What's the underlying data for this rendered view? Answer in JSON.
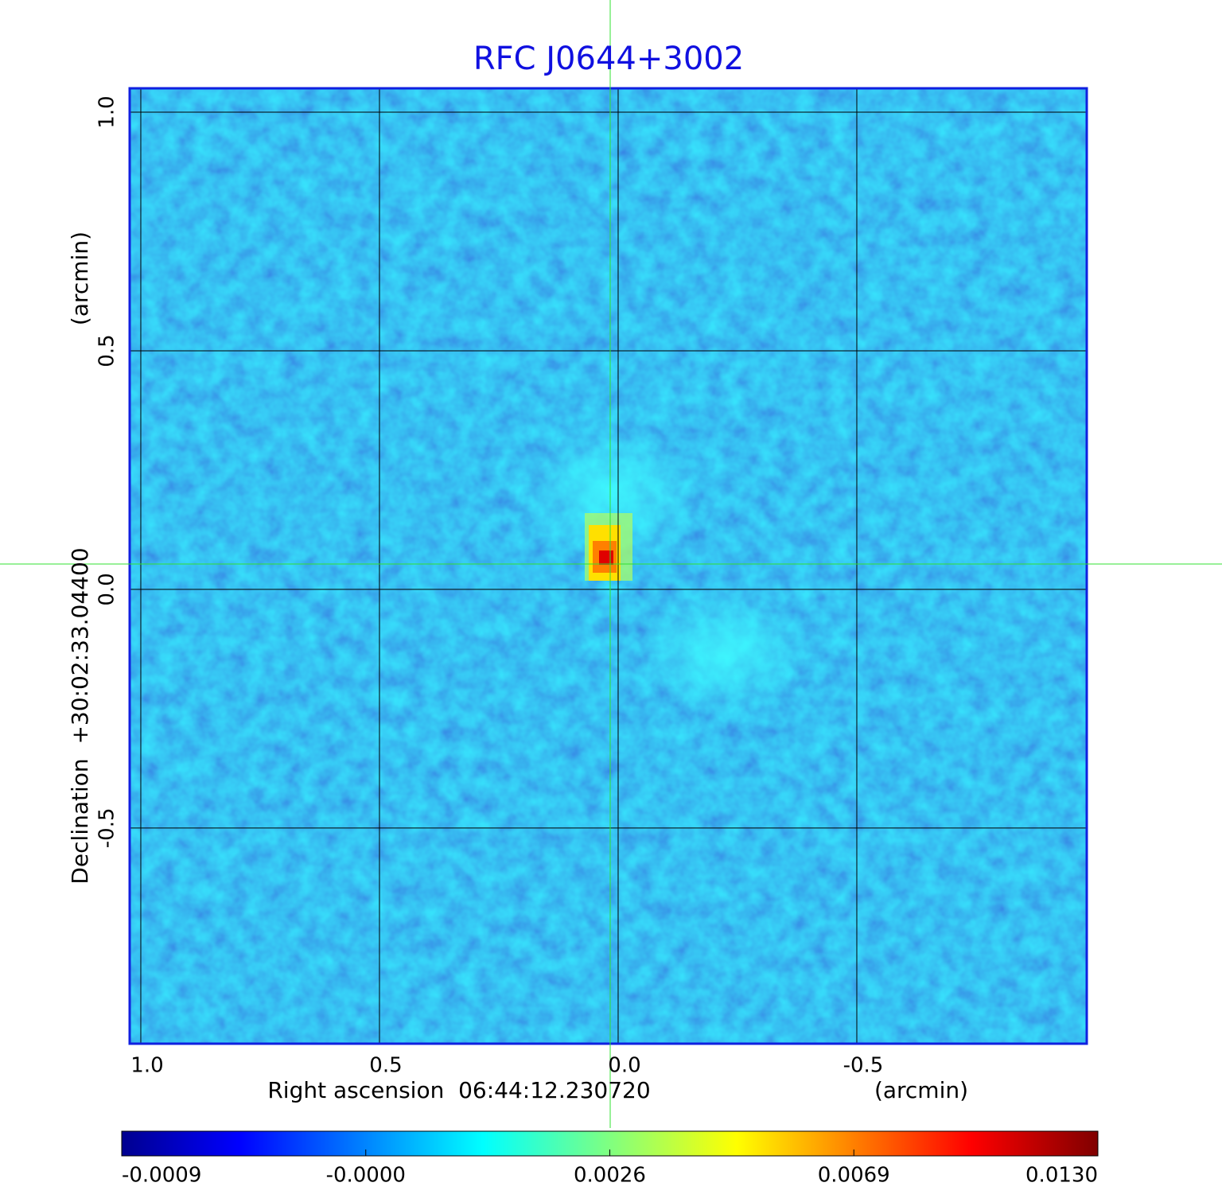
{
  "chart_data": {
    "type": "image",
    "title": "RFC J0644+3002",
    "x_label": "Right ascension  06:44:12.230720",
    "x_unit": "(arcmin)",
    "y_label": "Declination  +30:02:33.04400",
    "y_unit": "(arcmin)",
    "xlim": [
      1.0233,
      -0.9817
    ],
    "xticks": [
      {
        "value": 1,
        "label": "1.0"
      },
      {
        "value": 0.5,
        "label": "0.5"
      },
      {
        "value": 0,
        "label": "0.0"
      },
      {
        "value": -0.5,
        "label": "-0.5"
      }
    ],
    "ylim": [
      -0.952,
      1.05
    ],
    "yticks": [
      {
        "value": 1,
        "label": "1.0"
      },
      {
        "value": 0.5,
        "label": "0.5"
      },
      {
        "value": 0,
        "label": "0.0"
      },
      {
        "value": -0.5,
        "label": "-0.5"
      }
    ],
    "grid": true,
    "colorbar": {
      "ticks": [
        {
          "value": -0.0009,
          "label": "-0.0009"
        },
        {
          "value": 0,
          "label": "-0.0000"
        },
        {
          "value": 0.0026,
          "label": "0.0026"
        },
        {
          "value": 0.0069,
          "label": "0.0069"
        },
        {
          "value": 0.013,
          "label": "0.0130"
        }
      ]
    }
  }
}
